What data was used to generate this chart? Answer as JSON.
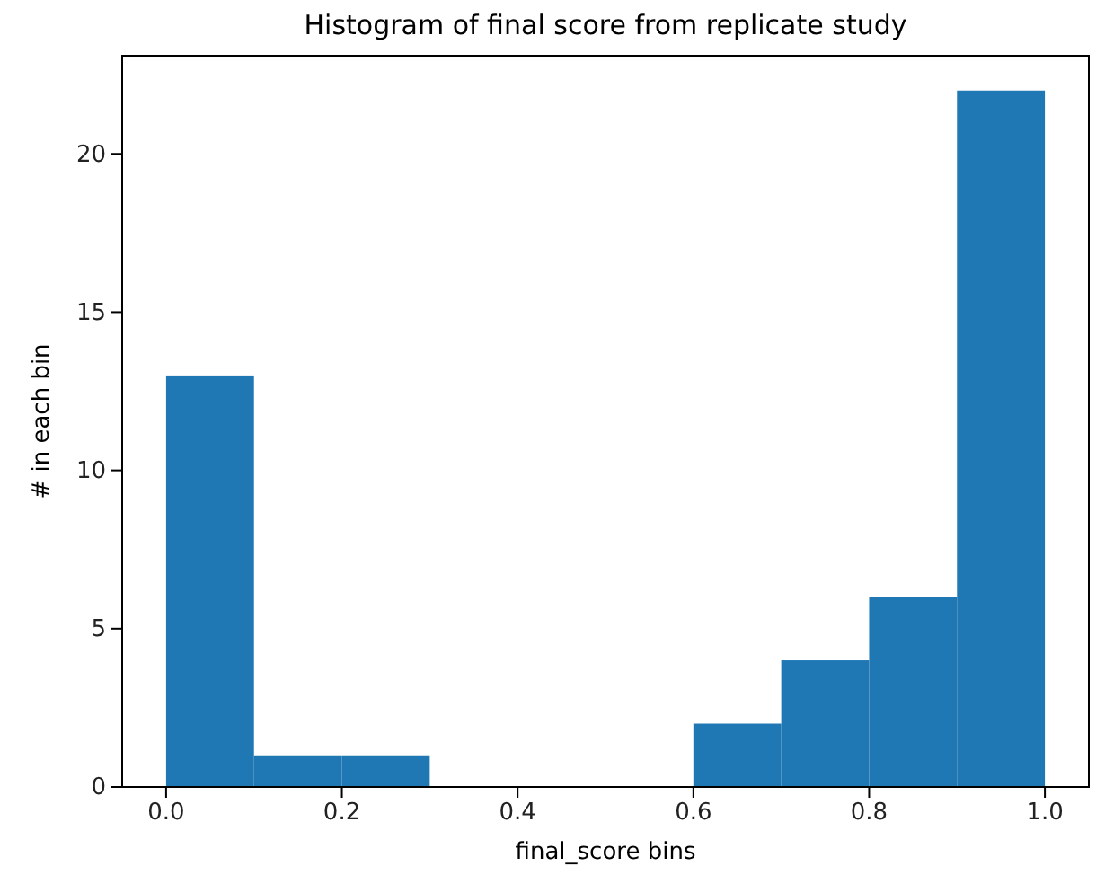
{
  "chart_data": {
    "type": "histogram",
    "title": "Histogram of final score from replicate study",
    "xlabel": "final_score bins",
    "ylabel": "# in each bin",
    "bins": [
      0,
      0.1,
      0.2,
      0.3,
      0.4,
      0.5,
      0.6,
      0.7,
      0.8,
      0.9,
      1.0
    ],
    "values": [
      13,
      1,
      1,
      0,
      0,
      0,
      2,
      4,
      6,
      22
    ],
    "color": "#1f77b4",
    "xlim": [
      -0.05,
      1.05
    ],
    "xticks": [
      {
        "value": 0,
        "label": "0.0"
      },
      {
        "value": 0.2,
        "label": "0.2"
      },
      {
        "value": 0.4,
        "label": "0.4"
      },
      {
        "value": 0.6,
        "label": "0.6"
      },
      {
        "value": 0.8,
        "label": "0.8"
      },
      {
        "value": 1.0,
        "label": "1.0"
      }
    ],
    "ylim": [
      0,
      23.1
    ],
    "yticks": [
      0,
      5,
      10,
      15,
      20
    ],
    "grid": false
  }
}
